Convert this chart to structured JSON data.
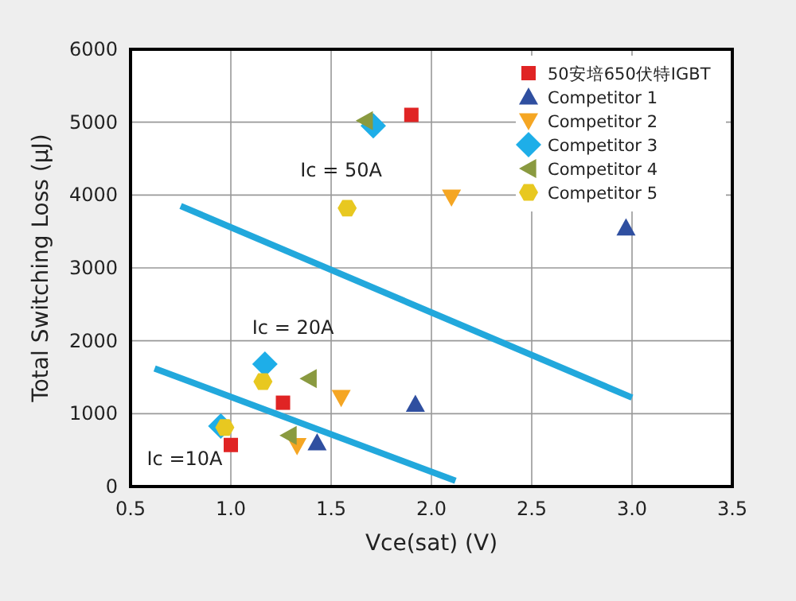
{
  "chart_data": {
    "type": "scatter",
    "xlabel": "Vce(sat) (V)",
    "ylabel": "Total Switching Loss (μJ)",
    "xlim": [
      0.5,
      3.5
    ],
    "xticks": [
      {
        "value": 0.5,
        "label": "0.5"
      },
      {
        "value": 1,
        "label": "1.0"
      },
      {
        "value": 1.5,
        "label": "1.5"
      },
      {
        "value": 2,
        "label": "2.0"
      },
      {
        "value": 2.5,
        "label": "2.5"
      },
      {
        "value": 3,
        "label": "3.0"
      },
      {
        "value": 3.5,
        "label": "3.5"
      }
    ],
    "ylim": [
      0,
      6000
    ],
    "yticks": [
      0,
      1000,
      2000,
      3000,
      4000,
      5000,
      6000
    ],
    "grid": true,
    "legend": "top right",
    "series": [
      {
        "name": "50安培650伏特IGBT",
        "color": "#e02424",
        "marker": "square",
        "x": [
          1.9,
          1.26,
          1.0
        ],
        "values": [
          5100,
          1150,
          570
        ]
      },
      {
        "name": "Competitor 1",
        "color": "#2f4fa0",
        "marker": "triangle",
        "x": [
          2.97,
          1.92,
          1.43
        ],
        "values": [
          3550,
          1130,
          600
        ]
      },
      {
        "name": "Competitor 2",
        "color": "#f5a623",
        "x": [
          2.1,
          1.55,
          1.33
        ],
        "values": [
          3970,
          1220,
          560
        ]
      },
      {
        "name": "Competitor 3",
        "color": "#1eaee8",
        "marker": "diamond",
        "x": [
          1.71,
          1.17,
          0.95
        ],
        "values": [
          4950,
          1680,
          830
        ]
      },
      {
        "name": "Competitor 4",
        "color": "#8a9a40",
        "x": [
          1.67,
          1.39,
          1.29
        ],
        "values": [
          5020,
          1480,
          700
        ]
      },
      {
        "name": "Competitor 5",
        "color": "#e8c820",
        "x": [
          1.58,
          1.16,
          0.97
        ],
        "values": [
          3820,
          1440,
          810
        ]
      },
      {
        "type": "line",
        "color": "#22a8dc",
        "x": [
          0.75,
          3.0
        ],
        "values": [
          3850,
          1220
        ]
      },
      {
        "type": "line",
        "color": "#22a8dc",
        "x": [
          0.62,
          2.12
        ],
        "values": [
          1620,
          80
        ]
      }
    ],
    "annotations": [
      "Ic = 50A",
      "Ic = 20A",
      "Ic =10A"
    ]
  }
}
